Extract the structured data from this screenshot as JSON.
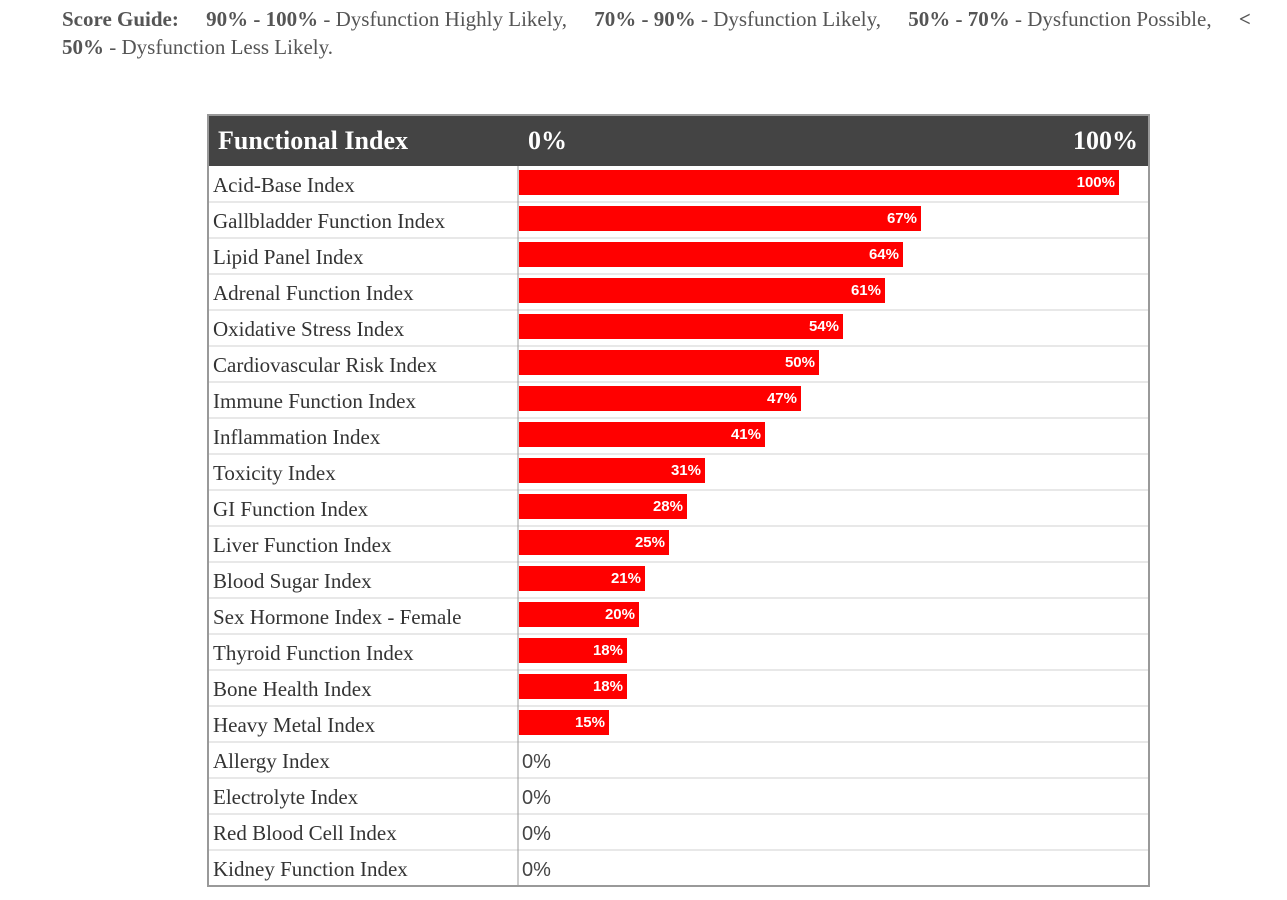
{
  "score_guide": {
    "label": "Score Guide:",
    "items": [
      {
        "range": "90% - 100%",
        "text": "- Dysfunction Highly Likely,"
      },
      {
        "range": "70% - 90%",
        "text": "- Dysfunction Likely,"
      },
      {
        "range": "50% - 70%",
        "text": "- Dysfunction Possible,"
      },
      {
        "range": "< 50%",
        "text": "- Dysfunction Less Likely."
      }
    ]
  },
  "chart_data": {
    "type": "bar",
    "orientation": "horizontal",
    "category_header": "Functional Index",
    "categories": [
      "Acid-Base Index",
      "Gallbladder Function Index",
      "Lipid Panel Index",
      "Adrenal Function Index",
      "Oxidative Stress Index",
      "Cardiovascular Risk Index",
      "Immune Function Index",
      "Inflammation Index",
      "Toxicity Index",
      "GI Function Index",
      "Liver Function Index",
      "Blood Sugar Index",
      "Sex Hormone Index - Female",
      "Thyroid Function Index",
      "Bone Health Index",
      "Heavy Metal Index",
      "Allergy Index",
      "Electrolyte Index",
      "Red Blood Cell Index",
      "Kidney Function Index"
    ],
    "values": [
      100,
      67,
      64,
      61,
      54,
      50,
      47,
      41,
      31,
      28,
      25,
      21,
      20,
      18,
      18,
      15,
      0,
      0,
      0,
      0
    ],
    "value_labels": [
      "100%",
      "67%",
      "64%",
      "61%",
      "54%",
      "50%",
      "47%",
      "41%",
      "31%",
      "28%",
      "25%",
      "21%",
      "20%",
      "18%",
      "18%",
      "15%",
      "0%",
      "0%",
      "0%",
      "0%"
    ],
    "color": "#ff0000",
    "xlim": [
      0,
      100
    ],
    "xticks": [
      {
        "value": 0,
        "label": "0%"
      },
      {
        "value": 100,
        "label": "100%"
      }
    ]
  }
}
